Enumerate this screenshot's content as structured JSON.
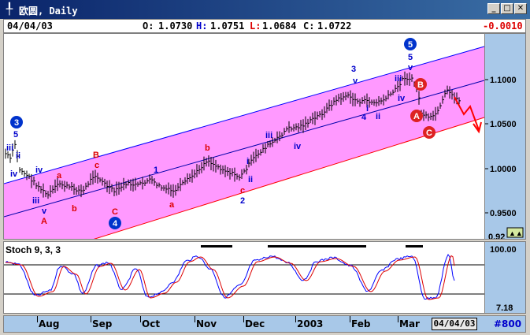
{
  "window": {
    "title": "欧圆, Daily",
    "buttons": [
      "_",
      "□",
      "✕"
    ]
  },
  "header": {
    "date": "04/04/03",
    "open_label": "O:",
    "open": "1.0730",
    "high_label": "H:",
    "high": "1.0751",
    "low_label": "L:",
    "low": "1.0684",
    "close_label": "C:",
    "close": "1.0722",
    "change": "-0.0010"
  },
  "colors": {
    "channel_fill": "#ff99ff",
    "upper_line": "#0000ff",
    "lower_line": "#ff0000",
    "candles": "#000000",
    "wave_blue": "#0000cc",
    "wave_red": "#dd0000",
    "stoch_k": "#0000ff",
    "stoch_d": "#dd0000",
    "axis_bg": "#a8c8e8"
  },
  "price_axis": {
    "ticks": [
      "1.1000",
      "1.0500",
      "1.0000",
      "0.9500"
    ],
    "cut_label": "0.92"
  },
  "wave_labels": {
    "blue": [
      "3",
      "5",
      "iii",
      "ii",
      "iv",
      "iv",
      "iii",
      "v",
      "1",
      "i",
      "ii",
      "iii",
      "iv",
      "3",
      "v",
      "4",
      "ii",
      "i",
      "5",
      "v",
      "iii",
      "iv",
      "2"
    ],
    "red": [
      "a",
      "b",
      "c",
      "B",
      "C",
      "a",
      "b",
      "c",
      "A"
    ],
    "circled_blue": [
      "3",
      "4",
      "5"
    ],
    "circled_red": [
      "A",
      "B",
      "C"
    ]
  },
  "stoch": {
    "title": "Stoch 9, 3, 3",
    "levels": [
      "100.00"
    ],
    "cut_label": "7.18"
  },
  "timebar": {
    "months": [
      "Aug",
      "Sep",
      "Oct",
      "Nov",
      "Dec",
      "2003",
      "Feb",
      "Mar"
    ],
    "current_date": "04/04/03",
    "record": "#800"
  }
}
